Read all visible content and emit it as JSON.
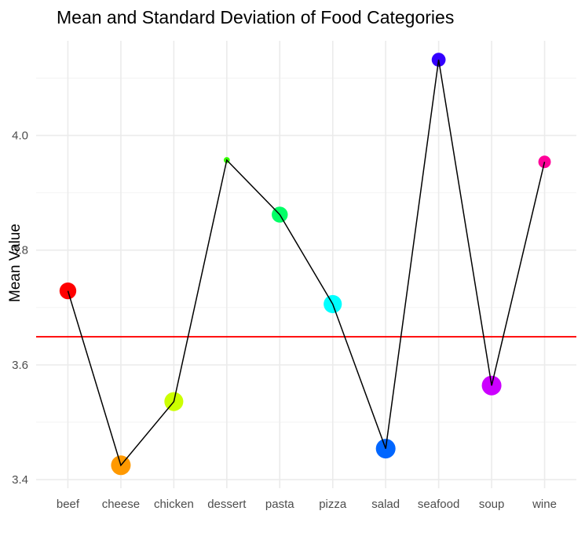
{
  "chart_data": {
    "type": "line",
    "title": "Mean and Standard Deviation of Food Categories",
    "xlabel": "",
    "ylabel": "Mean Value",
    "categories": [
      "beef",
      "cheese",
      "chicken",
      "dessert",
      "pasta",
      "pizza",
      "salad",
      "seafood",
      "soup",
      "wine"
    ],
    "series": [
      {
        "values": [
          3.729,
          3.425,
          3.536,
          3.957,
          3.862,
          3.706,
          3.454,
          4.132,
          3.564,
          3.954
        ],
        "point_sizes_sd": [
          0.9,
          1.1,
          1.05,
          0.15,
          0.85,
          1.0,
          1.1,
          0.7,
          1.1,
          0.6
        ],
        "colors": [
          "#ff0000",
          "#ff9900",
          "#ccff00",
          "#33ff00",
          "#00ff66",
          "#00ffff",
          "#0066ff",
          "#3300ff",
          "#cc00ff",
          "#ff0099"
        ],
        "line_color": "#000000"
      }
    ],
    "hline": {
      "value": 3.649,
      "color": "#ff0000"
    },
    "ylim": [
      3.385,
      4.165
    ],
    "yticks": [
      3.4,
      3.6,
      3.8,
      4.0
    ],
    "ytick_labels": [
      "3.4",
      "3.6",
      "3.8",
      "4.0"
    ],
    "grid": true,
    "legend": "none"
  }
}
